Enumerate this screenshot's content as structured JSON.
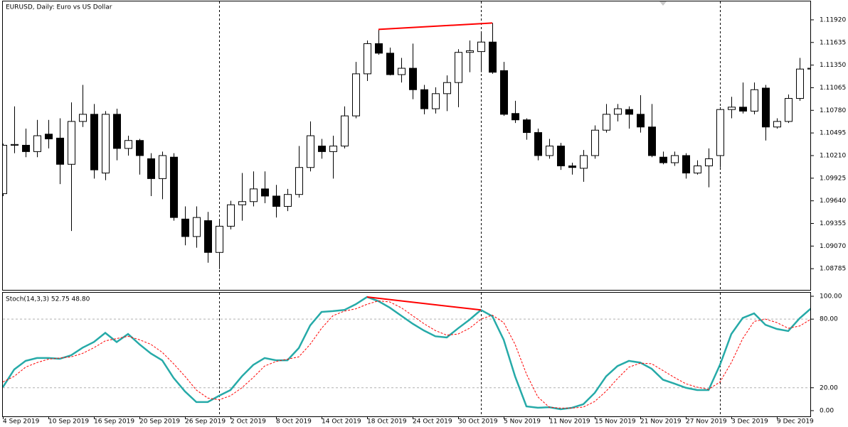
{
  "chart_data": [
    {
      "type": "candlestick",
      "title": "EURUSD, Daily:  Euro vs US Dollar",
      "categories": [
        "4 Sep 2019",
        null,
        null,
        null,
        "10 Sep 2019",
        null,
        null,
        null,
        "16 Sep 2019",
        null,
        null,
        null,
        "20 Sep 2019",
        null,
        null,
        null,
        "26 Sep 2019",
        null,
        null,
        null,
        "2 Oct 2019",
        null,
        null,
        null,
        "8 Oct 2019",
        null,
        null,
        null,
        "14 Oct 2019",
        null,
        null,
        null,
        "18 Oct 2019",
        null,
        null,
        null,
        "24 Oct 2019",
        null,
        null,
        null,
        "30 Oct 2019",
        null,
        null,
        null,
        "5 Nov 2019",
        null,
        null,
        null,
        "11 Nov 2019",
        null,
        null,
        null,
        "15 Nov 2019",
        null,
        null,
        null,
        "21 Nov 2019",
        null,
        null,
        null,
        "27 Nov 2019",
        null,
        null,
        null,
        "3 Dec 2019",
        null,
        null,
        null,
        "9 Dec 2019",
        null,
        null,
        null
      ],
      "open": [
        1.0973,
        1.1034,
        1.1034,
        1.1026,
        1.1048,
        1.1043,
        1.101,
        1.1064,
        1.1073,
        1.0999,
        1.1073,
        1.103,
        1.104,
        1.1017,
        1.0992,
        1.1019,
        1.0941,
        1.0919,
        1.0939,
        1.0899,
        1.0932,
        1.0959,
        1.0963,
        1.0979,
        1.097,
        1.0957,
        1.0972,
        1.1006,
        1.1033,
        1.1026,
        1.1033,
        1.1071,
        1.1124,
        1.1162,
        1.115,
        1.1123,
        1.1131,
        1.1104,
        1.108,
        1.1099,
        1.1113,
        1.1151,
        1.1152,
        1.1164,
        1.1128,
        1.1074,
        1.1066,
        1.105,
        1.1021,
        1.1033,
        1.1008,
        1.1005,
        1.1021,
        1.1053,
        1.1073,
        1.1079,
        1.1073,
        1.1057,
        1.1019,
        1.1012,
        1.1021,
        1.0999,
        1.1008,
        1.1021,
        1.1079,
        1.1082,
        1.1077,
        1.1106,
        1.1057,
        1.1064,
        1.1093,
        1.113
      ],
      "high": [
        1.1036,
        1.1083,
        1.1055,
        1.1066,
        1.1066,
        1.1068,
        1.1088,
        1.111,
        1.1086,
        1.1077,
        1.108,
        1.1046,
        1.1042,
        1.1024,
        1.1026,
        1.1024,
        1.0957,
        1.0957,
        1.095,
        1.0939,
        1.0964,
        1.0999,
        1.1001,
        1.1001,
        1.0984,
        1.0979,
        1.1033,
        1.1064,
        1.1042,
        1.1046,
        1.1083,
        1.1139,
        1.1166,
        1.118,
        1.1157,
        1.1144,
        1.1162,
        1.111,
        1.1107,
        1.1122,
        1.1155,
        1.1166,
        1.1175,
        1.1188,
        1.1139,
        1.109,
        1.1068,
        1.1055,
        1.1042,
        1.1037,
        1.1012,
        1.1028,
        1.1059,
        1.1086,
        1.1086,
        1.1083,
        1.1097,
        1.1086,
        1.1026,
        1.1026,
        1.1024,
        1.1015,
        1.103,
        1.1082,
        1.1095,
        1.1113,
        1.1113,
        1.111,
        1.1068,
        1.1098,
        1.1144,
        1.1155
      ],
      "low": [
        1.097,
        1.1024,
        1.1019,
        1.1019,
        1.103,
        1.0985,
        1.0926,
        1.1057,
        1.0992,
        1.099,
        1.1015,
        1.1021,
        1.0997,
        1.097,
        1.0966,
        1.0939,
        1.0908,
        1.0905,
        1.0886,
        1.0878,
        1.0928,
        1.0939,
        1.0957,
        1.0961,
        1.0943,
        1.0951,
        1.0968,
        1.1001,
        1.1017,
        1.0992,
        1.103,
        1.1068,
        1.1115,
        1.1148,
        1.1122,
        1.1113,
        1.1092,
        1.1073,
        1.1074,
        1.1077,
        1.1082,
        1.1126,
        1.1126,
        1.1124,
        1.1071,
        1.1062,
        1.1041,
        1.1015,
        1.1017,
        1.1003,
        1.0997,
        1.0988,
        1.1017,
        1.105,
        1.1064,
        1.1055,
        1.105,
        1.1019,
        1.101,
        1.1008,
        1.0992,
        1.0997,
        1.0981,
        1.1006,
        1.1068,
        1.1074,
        1.1073,
        1.104,
        1.1055,
        1.1062,
        1.109,
        1.1104
      ],
      "close": [
        1.1034,
        1.1035,
        1.1026,
        1.1046,
        1.1042,
        1.101,
        1.1064,
        1.1073,
        1.1003,
        1.1073,
        1.103,
        1.104,
        1.1021,
        1.0992,
        1.1021,
        1.0943,
        1.0919,
        1.0943,
        1.0899,
        1.0932,
        1.0959,
        1.0963,
        1.0979,
        1.097,
        1.0957,
        1.0972,
        1.1006,
        1.1046,
        1.1026,
        1.1033,
        1.1071,
        1.1124,
        1.1162,
        1.115,
        1.1123,
        1.1131,
        1.1104,
        1.108,
        1.1099,
        1.1113,
        1.1151,
        1.1153,
        1.1164,
        1.1126,
        1.1073,
        1.1066,
        1.105,
        1.1021,
        1.1033,
        1.1008,
        1.1006,
        1.1021,
        1.1053,
        1.1073,
        1.108,
        1.1073,
        1.1057,
        1.1021,
        1.1012,
        1.1021,
        1.0999,
        1.1008,
        1.1017,
        1.1079,
        1.1082,
        1.1077,
        1.1104,
        1.1057,
        1.1064,
        1.1093,
        1.113,
        1.1131
      ],
      "up_color": "#ffffff",
      "down_color": "#000000",
      "ylim": [
        1.08518,
        1.12152
      ],
      "yticks": [
        {
          "value": 1.1192,
          "label": "1.11920"
        },
        1.11635,
        {
          "value": 1.1135,
          "label": "1.11350"
        },
        1.11065,
        {
          "value": 1.1078,
          "label": "1.10780"
        },
        1.10495,
        {
          "value": 1.1021,
          "label": "1.10210"
        },
        1.09925,
        {
          "value": 1.0964,
          "label": "1.09640"
        },
        1.09355,
        {
          "value": 1.0907,
          "label": "1.09070"
        },
        1.08785
      ]
    },
    {
      "type": "line",
      "title": "Stoch(14,3,3) 52.75 48.80",
      "series": [
        {
          "color": "#26aaa8",
          "dashed": false,
          "values": [
            20.5,
            36,
            43.5,
            46,
            46,
            45.3,
            48.4,
            55,
            60,
            68,
            60,
            67,
            58,
            50,
            44,
            28.6,
            16.8,
            7.5,
            7.5,
            13,
            18,
            30,
            40,
            46,
            44,
            44,
            54.7,
            74.5,
            86.3,
            87,
            88,
            93,
            99.4,
            95.7,
            90,
            83,
            76,
            70,
            65,
            64,
            72,
            79.5,
            88,
            82.6,
            62,
            30,
            3.7,
            2.5,
            3,
            1.2,
            2.5,
            5.6,
            15.5,
            30,
            39,
            43.5,
            42,
            36.6,
            27,
            23.6,
            20,
            18,
            18,
            40,
            67,
            81,
            85,
            75,
            71.4,
            69.6,
            80.7,
            89.4
          ]
        },
        {
          "color": "#ff0000",
          "dashed": true,
          "values": [
            25,
            30,
            38,
            42,
            45,
            46,
            47,
            50,
            55,
            61,
            63,
            65,
            62,
            58,
            51,
            41,
            30,
            18,
            11,
            9.5,
            13,
            20,
            29,
            39,
            43,
            45,
            47,
            58,
            72,
            83,
            87,
            89,
            93,
            96,
            95,
            90,
            83,
            76,
            70,
            66,
            67,
            72,
            80,
            83.5,
            77,
            58,
            32,
            12,
            3,
            2.2,
            2.2,
            3.1,
            8,
            17,
            28,
            38,
            41.5,
            41,
            35,
            29,
            23.5,
            20.5,
            18.7,
            25,
            42,
            63,
            78,
            80,
            77,
            72,
            74,
            80
          ]
        }
      ],
      "ylim": [
        -5,
        103.1
      ],
      "yticks": [
        {
          "value": 100,
          "label": "100.00"
        },
        {
          "value": 80,
          "label": "80.00"
        },
        {
          "value": 20,
          "label": "20.00"
        },
        {
          "value": 0,
          "label": "0.00"
        }
      ],
      "grid_ticks": [
        80,
        20
      ]
    }
  ]
}
